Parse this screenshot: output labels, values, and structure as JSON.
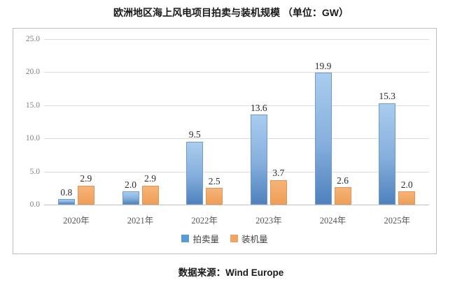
{
  "title": "欧洲地区海上风电项目拍卖与装机规模 （单位：GW）",
  "source": "数据来源：Wind Europe",
  "colors": {
    "auction_bar_top": "#aacdee",
    "auction_bar_bottom": "#4e81bd",
    "installed_bar": "#f0a45f",
    "gridline": "#dcdcdc",
    "tick_text": "#7f7f7f"
  },
  "chart_data": {
    "type": "bar",
    "title": "欧洲地区海上风电项目拍卖与装机规模 （单位：GW）",
    "categories": [
      "2020年",
      "2021年",
      "2022年",
      "2023年",
      "2024年",
      "2025年"
    ],
    "series": [
      {
        "name": "拍卖量",
        "color": "#5b9bd5",
        "values": [
          0.8,
          2.0,
          9.5,
          13.6,
          19.9,
          15.3
        ]
      },
      {
        "name": "装机量",
        "color": "#f0a45f",
        "values": [
          2.9,
          2.9,
          2.5,
          3.7,
          2.6,
          2.0
        ]
      }
    ],
    "xlabel": "",
    "ylabel": "",
    "ylim": [
      0,
      25
    ],
    "ytick_step": 5,
    "ytick_format_decimals": 1,
    "grid": true,
    "legend_position": "bottom",
    "data_labels": true,
    "source_note": "数据来源：Wind Europe"
  }
}
